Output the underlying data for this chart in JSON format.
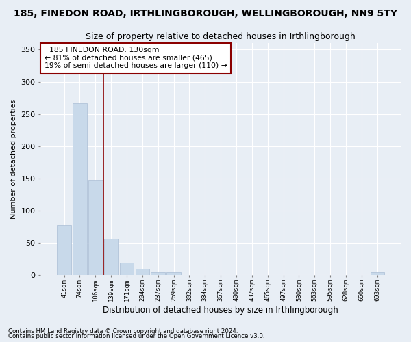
{
  "title": "185, FINEDON ROAD, IRTHLINGBOROUGH, WELLINGBOROUGH, NN9 5TY",
  "subtitle": "Size of property relative to detached houses in Irthlingborough",
  "xlabel": "Distribution of detached houses by size in Irthlingborough",
  "ylabel": "Number of detached properties",
  "categories": [
    "41sqm",
    "74sqm",
    "106sqm",
    "139sqm",
    "171sqm",
    "204sqm",
    "237sqm",
    "269sqm",
    "302sqm",
    "334sqm",
    "367sqm",
    "400sqm",
    "432sqm",
    "465sqm",
    "497sqm",
    "530sqm",
    "563sqm",
    "595sqm",
    "628sqm",
    "660sqm",
    "693sqm"
  ],
  "values": [
    78,
    267,
    148,
    57,
    19,
    10,
    5,
    5,
    0,
    0,
    0,
    0,
    0,
    0,
    0,
    0,
    0,
    0,
    0,
    0,
    4
  ],
  "bar_color": "#c8d9ea",
  "bar_edge_color": "#aabdd4",
  "red_line_x": 2.5,
  "annotation_line1": "  185 FINEDON ROAD: 130sqm",
  "annotation_line2": "← 81% of detached houses are smaller (465)",
  "annotation_line3": "19% of semi-detached houses are larger (110) →",
  "ylim": [
    0,
    360
  ],
  "yticks": [
    0,
    50,
    100,
    150,
    200,
    250,
    300,
    350
  ],
  "footer1": "Contains HM Land Registry data © Crown copyright and database right 2024.",
  "footer2": "Contains public sector information licensed under the Open Government Licence v3.0.",
  "background_color": "#e8eef5",
  "grid_color": "#ffffff",
  "title_fontsize": 10,
  "subtitle_fontsize": 9
}
